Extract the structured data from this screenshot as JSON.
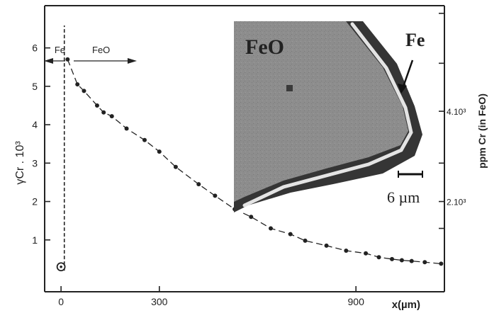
{
  "chart_data": {
    "type": "scatter",
    "xlabel": "x(µm)",
    "ylabel": "γCr . 10³",
    "y2label": "ppm  Cr  (in FeO)",
    "xlim": [
      -50,
      1170
    ],
    "ylim": [
      -0.35,
      7.1
    ],
    "x_ticks": [
      0,
      300,
      900
    ],
    "y_ticks": [
      1,
      2,
      3,
      4,
      5,
      6
    ],
    "y2_ticks": [
      "2.10³",
      "4.10³"
    ],
    "grid": false,
    "region_labels": {
      "fe": "Fe",
      "feo": "FeO"
    },
    "series": [
      {
        "values": [
          {
            "x": 20,
            "y": 5.7
          },
          {
            "x": 50,
            "y": 5.05
          },
          {
            "x": 70,
            "y": 4.88
          },
          {
            "x": 110,
            "y": 4.5
          },
          {
            "x": 130,
            "y": 4.32
          },
          {
            "x": 155,
            "y": 4.22
          },
          {
            "x": 200,
            "y": 3.9
          },
          {
            "x": 255,
            "y": 3.6
          },
          {
            "x": 300,
            "y": 3.3
          },
          {
            "x": 350,
            "y": 2.9
          },
          {
            "x": 420,
            "y": 2.45
          },
          {
            "x": 470,
            "y": 2.15
          },
          {
            "x": 530,
            "y": 1.8
          },
          {
            "x": 580,
            "y": 1.6
          },
          {
            "x": 640,
            "y": 1.3
          },
          {
            "x": 700,
            "y": 1.15
          },
          {
            "x": 745,
            "y": 0.98
          },
          {
            "x": 810,
            "y": 0.85
          },
          {
            "x": 870,
            "y": 0.72
          },
          {
            "x": 930,
            "y": 0.65
          },
          {
            "x": 970,
            "y": 0.55
          },
          {
            "x": 1010,
            "y": 0.5
          },
          {
            "x": 1040,
            "y": 0.47
          },
          {
            "x": 1070,
            "y": 0.45
          },
          {
            "x": 1110,
            "y": 0.42
          },
          {
            "x": 1160,
            "y": 0.38
          }
        ]
      }
    ],
    "interface_point": {
      "x": 0,
      "y": 0.3
    },
    "interface_x": 10
  },
  "inset": {
    "label_oxide": "FeO",
    "label_metal": "Fe",
    "scale_bar": "6 µm",
    "colors": {
      "oxide": "#8d8d8d",
      "shadow": "#353535",
      "metal_band": "#e4e4e4"
    }
  }
}
